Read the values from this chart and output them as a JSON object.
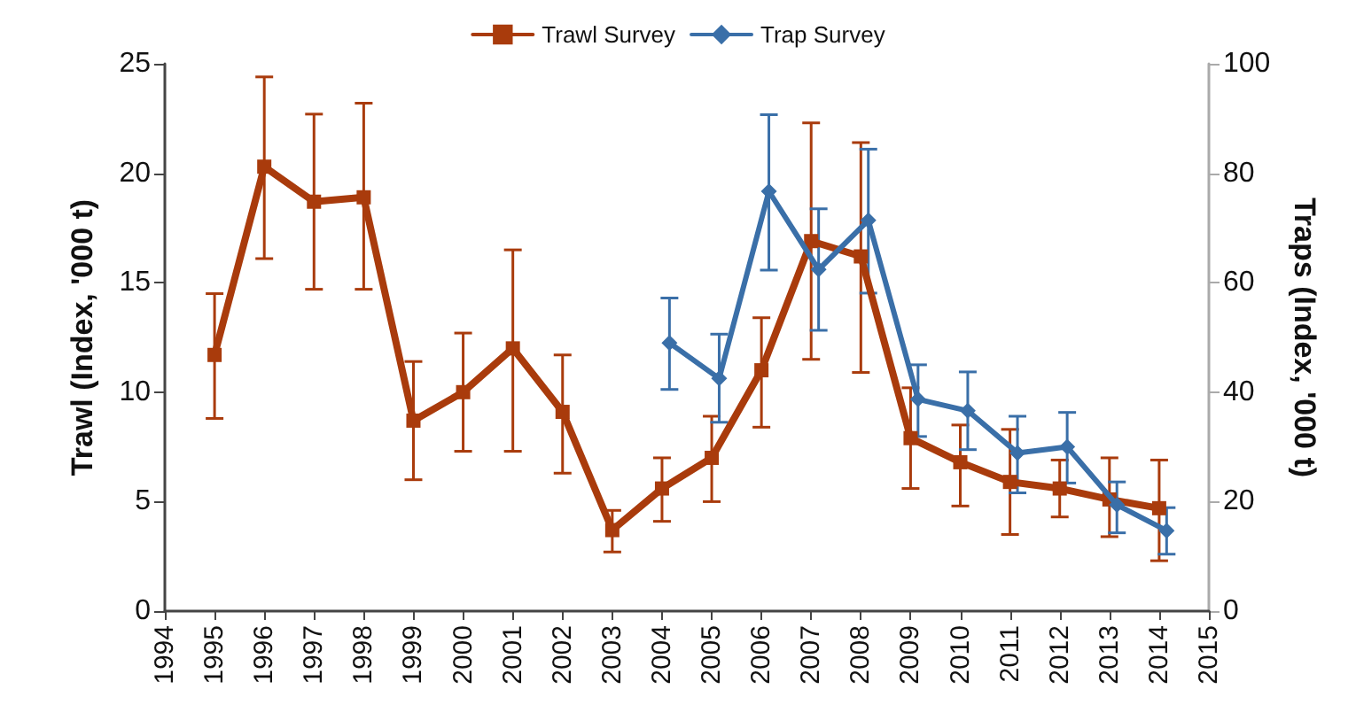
{
  "chart_data": {
    "type": "line",
    "xlabel": null,
    "ylabel": "Trawl (Index, '000 t)",
    "y2label": "Traps (Index, '000 t)",
    "xlim": [
      1994,
      2015
    ],
    "xticks": [
      1994,
      1995,
      1996,
      1997,
      1998,
      1999,
      2000,
      2001,
      2002,
      2003,
      2004,
      2005,
      2006,
      2007,
      2008,
      2009,
      2010,
      2011,
      2012,
      2013,
      2014,
      2015
    ],
    "ylim": [
      0,
      25
    ],
    "yticks": [
      0,
      5,
      10,
      15,
      20,
      25
    ],
    "y2lim": [
      0,
      100
    ],
    "y2ticks": [
      0,
      20,
      40,
      60,
      80,
      100
    ],
    "grid": false,
    "legend": "top",
    "series": [
      {
        "name": "Trawl Survey",
        "color": "#a93b0c",
        "marker": "square",
        "x": [
          1995,
          1996,
          1997,
          1998,
          1999,
          2000,
          2001,
          2002,
          2003,
          2004,
          2005,
          2006,
          2007,
          2008,
          2009,
          2010,
          2011,
          2012,
          2013,
          2014
        ],
        "values": [
          11.7,
          20.3,
          18.7,
          18.9,
          8.7,
          10.0,
          12.0,
          9.1,
          3.7,
          5.6,
          7.0,
          11.0,
          16.9,
          16.2,
          7.9,
          6.8,
          5.9,
          5.6,
          5.1,
          4.7
        ],
        "errors": [
          [
            8.8,
            14.5
          ],
          [
            16.1,
            24.4
          ],
          [
            14.7,
            22.7
          ],
          [
            14.7,
            23.2
          ],
          [
            6.0,
            11.4
          ],
          [
            7.3,
            12.7
          ],
          [
            7.3,
            16.5
          ],
          [
            6.3,
            11.7
          ],
          [
            2.7,
            4.6
          ],
          [
            4.1,
            7.0
          ],
          [
            5.0,
            8.9
          ],
          [
            8.4,
            13.4
          ],
          [
            11.5,
            22.3
          ],
          [
            10.9,
            21.4
          ],
          [
            5.6,
            10.2
          ],
          [
            4.8,
            8.5
          ],
          [
            3.5,
            8.3
          ],
          [
            4.3,
            6.9
          ],
          [
            3.4,
            7.0
          ],
          [
            2.3,
            6.9
          ]
        ]
      },
      {
        "name": "Trap Survey",
        "color": "#3a6fa8",
        "marker": "diamond",
        "axis": "y2",
        "x": [
          2004.15,
          2005.15,
          2006.15,
          2007.15,
          2008.15,
          2009.15,
          2010.15,
          2011.15,
          2012.15,
          2013.15,
          2014.15
        ],
        "values": [
          49.0,
          42.5,
          76.7,
          62.4,
          71.4,
          38.7,
          36.6,
          28.9,
          30.0,
          19.4,
          14.7
        ],
        "errors": [
          [
            40.5,
            57.2
          ],
          [
            34.5,
            50.6
          ],
          [
            62.3,
            90.7
          ],
          [
            51.3,
            73.5
          ],
          [
            58.1,
            84.4
          ],
          [
            31.9,
            45.0
          ],
          [
            29.5,
            43.7
          ],
          [
            21.6,
            35.6
          ],
          [
            23.4,
            36.3
          ],
          [
            14.3,
            23.6
          ],
          [
            10.4,
            18.9
          ]
        ]
      }
    ]
  }
}
